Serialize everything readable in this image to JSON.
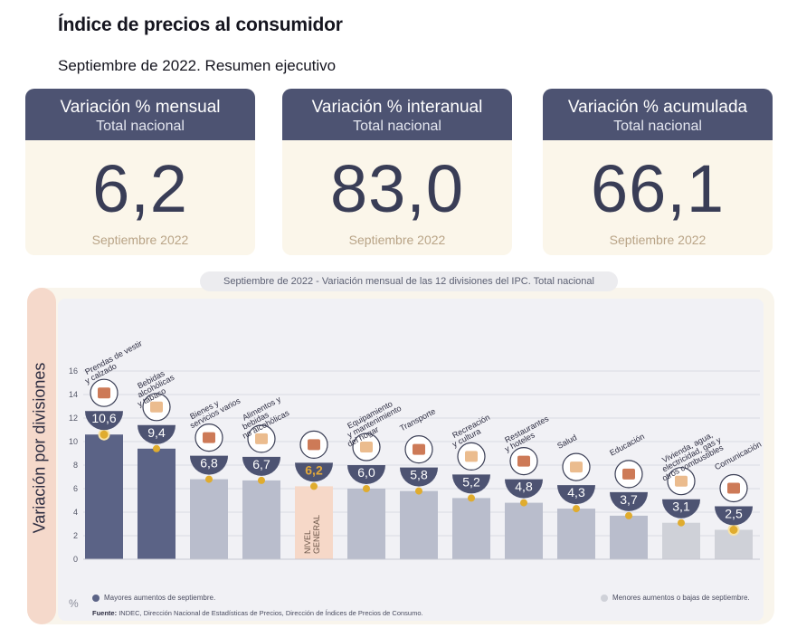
{
  "page": {
    "title": "Índice de precios al consumidor",
    "subtitle": "Septiembre de 2022. Resumen ejecutivo"
  },
  "kpis": [
    {
      "heading": "Variación % mensual",
      "subheading": "Total nacional",
      "value": "6,2",
      "date": "Septiembre 2022"
    },
    {
      "heading": "Variación % interanual",
      "subheading": "Total nacional",
      "value": "83,0",
      "date": "Septiembre 2022"
    },
    {
      "heading": "Variación % acumulada",
      "subheading": "Total nacional",
      "value": "66,1",
      "date": "Septiembre 2022"
    }
  ],
  "chart_caption": "Septiembre de 2022 - Variación mensual de las 12 divisiones del IPC. Total nacional",
  "legend": {
    "highlight": "Mayores aumentos de septiembre.",
    "low": "Menores aumentos o bajas de septiembre."
  },
  "source": {
    "label": "Fuente:",
    "text": "INDEC, Dirección Nacional de Estadísticas de Precios, Dirección de Índices de Precios de Consumo."
  },
  "colors": {
    "header": "#4d5372",
    "bar_high": "#5b6386",
    "bar_mid": "#b9bdcc",
    "bar_low": "#cfd1d8",
    "bar_general": "#f6d8c8",
    "value_badge": "#4d5372",
    "general_value": "#e4a93a",
    "marker": "#e0ac2e"
  },
  "chart_data": {
    "type": "bar",
    "ylabel": "Variación por divisiones",
    "yunit": "%",
    "ylim": [
      0,
      16
    ],
    "yticks": [
      0,
      2,
      4,
      6,
      8,
      10,
      12,
      14,
      16
    ],
    "grid": true,
    "categories": [
      "Prendas de vestir y calzado",
      "Bebidas alcohólicas y tabaco",
      "Bienes y servicios varios",
      "Alimentos y bebidas no alcohólicas",
      "Nivel general",
      "Equipamiento y mantenimiento del hogar",
      "Transporte",
      "Recreación y cultura",
      "Restaurantes y hoteles",
      "Salud",
      "Educación",
      "Vivienda, agua, electricidad, gas y otros combustibles",
      "Comunicación"
    ],
    "label_lines": [
      [
        "Prendas de vestir",
        "y calzado"
      ],
      [
        "Bebidas",
        "alcohólicas",
        "y tabaco"
      ],
      [
        "Bienes y",
        "servicios varios"
      ],
      [
        "Alimentos y",
        "bebidas",
        "no alcohólicas"
      ],
      [],
      [
        "Equipamiento",
        "y mantenimiento",
        "del hogar"
      ],
      [
        "Transporte"
      ],
      [
        "Recreación",
        "y cultura"
      ],
      [
        "Restaurantes",
        "y hoteles"
      ],
      [
        "Salud"
      ],
      [
        "Educación"
      ],
      [
        "Vivienda, agua,",
        "electricidad, gas y",
        "otros combustibles"
      ],
      [
        "Comunicación"
      ]
    ],
    "general_bar_text": [
      "NIVEL",
      "GENERAL"
    ],
    "values": [
      10.6,
      9.4,
      6.8,
      6.7,
      6.2,
      6.0,
      5.8,
      5.2,
      4.8,
      4.3,
      3.7,
      3.1,
      2.5
    ],
    "value_labels": [
      "10,6",
      "9,4",
      "6,8",
      "6,7",
      "6,2",
      "6,0",
      "5,8",
      "5,2",
      "4,8",
      "4,3",
      "3,7",
      "3,1",
      "2,5"
    ],
    "groups": [
      "high",
      "high",
      "mid",
      "mid",
      "general",
      "mid",
      "mid",
      "mid",
      "mid",
      "mid",
      "mid",
      "low",
      "low"
    ],
    "icons": [
      "shirt-icon",
      "bottles-icon",
      "toiletries-icon",
      "food-icon",
      "basket-icon",
      "appliance-icon",
      "bus-icon",
      "beach-icon",
      "dinner-icon",
      "health-cross-icon",
      "book-icon",
      "utilities-icon",
      "phone-icon"
    ]
  }
}
